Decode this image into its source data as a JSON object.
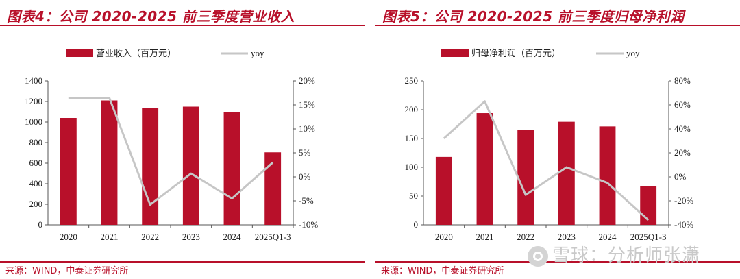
{
  "charts": [
    {
      "title": "图表4：公司 2020-2025 前三季度营业收入",
      "source": "来源：WIND，中泰证券研究所",
      "chart_data": {
        "type": "bar",
        "categories": [
          "2020",
          "2021",
          "2022",
          "2023",
          "2024",
          "2025Q1-3"
        ],
        "series": [
          {
            "name": "营业收入（百万元）",
            "type": "bar",
            "axis": "left",
            "color": "#b8102a",
            "values": [
              1040,
              1210,
              1140,
              1150,
              1095,
              705
            ]
          },
          {
            "name": "yoy",
            "type": "line",
            "axis": "right",
            "color": "#c6c6c6",
            "values": [
              16.5,
              16.5,
              -5.8,
              0.7,
              -4.5,
              3.0
            ]
          }
        ],
        "ylim_left": [
          0,
          1400
        ],
        "left_ticks": [
          0,
          200,
          400,
          600,
          800,
          1000,
          1200,
          1400
        ],
        "ylim_right": [
          -10,
          20
        ],
        "right_ticks": [
          -10,
          -5,
          0,
          5,
          10,
          15,
          20
        ],
        "right_unit": "%",
        "legend_position": "top"
      }
    },
    {
      "title": "图表5：公司 2020-2025 前三季度归母净利润",
      "source": "来源：WIND，中泰证券研究所",
      "chart_data": {
        "type": "bar",
        "categories": [
          "2020",
          "2021",
          "2022",
          "2023",
          "2024",
          "2025Q1-3"
        ],
        "series": [
          {
            "name": "归母净利润（百万元）",
            "type": "bar",
            "axis": "left",
            "color": "#b8102a",
            "values": [
              118,
              194,
              165,
              179,
              171,
              67
            ]
          },
          {
            "name": "yoy",
            "type": "line",
            "axis": "right",
            "color": "#c6c6c6",
            "values": [
              32,
              63,
              -15,
              8,
              -5,
              -36
            ]
          }
        ],
        "ylim_left": [
          0,
          250
        ],
        "left_ticks": [
          0,
          50,
          100,
          150,
          200,
          250
        ],
        "ylim_right": [
          -40,
          80
        ],
        "right_ticks": [
          -40,
          -20,
          0,
          20,
          40,
          60,
          80
        ],
        "right_unit": "%",
        "legend_position": "top"
      }
    }
  ],
  "watermark": "雪球：分析师张潇"
}
